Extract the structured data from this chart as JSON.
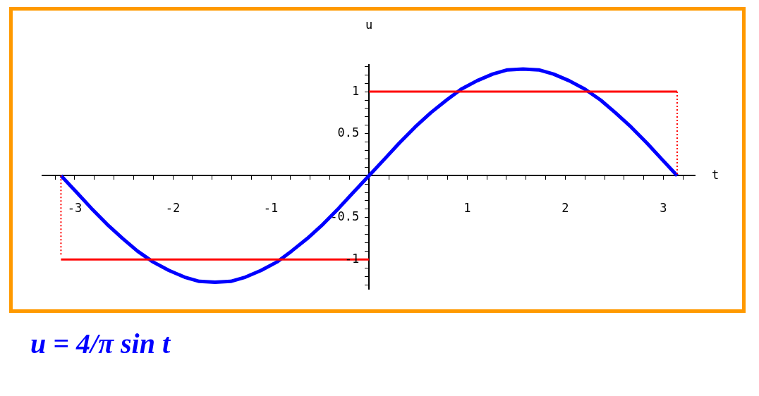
{
  "chart_data": {
    "type": "line",
    "xlabel": "t",
    "ylabel": "u",
    "xlim": [
      -3.33,
      3.32
    ],
    "ylim": [
      -1.35,
      1.32
    ],
    "xticks": [
      {
        "value": -3.2,
        "label": null
      },
      -3,
      {
        "value": -2.8,
        "label": null
      },
      {
        "value": -2.6,
        "label": null
      },
      {
        "value": -2.4,
        "label": null
      },
      {
        "value": -2.2,
        "label": null
      },
      -2,
      {
        "value": -1.8,
        "label": null
      },
      {
        "value": -1.6,
        "label": null
      },
      {
        "value": -1.4,
        "label": null
      },
      {
        "value": -1.2,
        "label": null
      },
      -1,
      {
        "value": -0.8,
        "label": null
      },
      {
        "value": -0.6,
        "label": null
      },
      {
        "value": -0.4,
        "label": null
      },
      {
        "value": -0.2,
        "label": null
      },
      {
        "value": 0,
        "label": null
      },
      {
        "value": 0.2,
        "label": null
      },
      {
        "value": 0.4,
        "label": null
      },
      {
        "value": 0.6,
        "label": null
      },
      {
        "value": 0.8,
        "label": null
      },
      1,
      {
        "value": 1.2,
        "label": null
      },
      {
        "value": 1.4,
        "label": null
      },
      {
        "value": 1.6,
        "label": null
      },
      {
        "value": 1.8,
        "label": null
      },
      2,
      {
        "value": 2.2,
        "label": null
      },
      {
        "value": 2.4,
        "label": null
      },
      {
        "value": 2.6,
        "label": null
      },
      {
        "value": 2.8,
        "label": null
      },
      3,
      {
        "value": 3.2,
        "label": null
      }
    ],
    "yticks": [
      {
        "value": -1.3,
        "label": null
      },
      {
        "value": -1.2,
        "label": null
      },
      {
        "value": -1.1,
        "label": null
      },
      -1,
      {
        "value": -0.9,
        "label": null
      },
      {
        "value": -0.8,
        "label": null
      },
      {
        "value": -0.7,
        "label": null
      },
      {
        "value": -0.6,
        "label": null
      },
      -0.5,
      {
        "value": -0.4,
        "label": null
      },
      {
        "value": -0.3,
        "label": null
      },
      {
        "value": -0.2,
        "label": null
      },
      {
        "value": -0.1,
        "label": null
      },
      {
        "value": 0,
        "label": null
      },
      {
        "value": 0.1,
        "label": null
      },
      {
        "value": 0.2,
        "label": null
      },
      {
        "value": 0.3,
        "label": null
      },
      {
        "value": 0.4,
        "label": null
      },
      0.5,
      {
        "value": 0.6,
        "label": null
      },
      {
        "value": 0.7,
        "label": null
      },
      {
        "value": 0.8,
        "label": null
      },
      {
        "value": 0.9,
        "label": null
      },
      1,
      {
        "value": 1.1,
        "label": null
      },
      {
        "value": 1.2,
        "label": null
      },
      {
        "value": 1.3,
        "label": null
      }
    ],
    "grid": false,
    "legend": false,
    "marker": "none",
    "annotations": [
      "u = 4/π sin t"
    ],
    "series": [
      {
        "type": "line",
        "color": "#ff0000",
        "line_style": "solid",
        "x": [
          -3.14,
          0
        ],
        "values": [
          -1,
          -1
        ]
      },
      {
        "type": "line",
        "color": "#ff0000",
        "line_style": "solid",
        "x": [
          0,
          3.14
        ],
        "values": [
          1,
          1
        ]
      },
      {
        "type": "line",
        "color": "#ff0000",
        "line_style": "dotted",
        "x": [
          -3.14,
          -3.14
        ],
        "values": [
          0,
          -0.95
        ]
      },
      {
        "type": "line",
        "color": "#ff0000",
        "line_style": "dotted",
        "x": [
          3.14,
          3.14
        ],
        "values": [
          1,
          0
        ]
      },
      {
        "type": "line",
        "color": "#0000ff",
        "line_style": "solid",
        "x": [
          -3.14,
          -2.98,
          -2.83,
          -2.67,
          -2.51,
          -2.36,
          -2.2,
          -2.04,
          -1.88,
          -1.73,
          -1.57,
          -1.41,
          -1.26,
          -1.1,
          -0.94,
          -0.79,
          -0.63,
          -0.47,
          -0.31,
          -0.16,
          0,
          0.16,
          0.31,
          0.47,
          0.63,
          0.79,
          0.94,
          1.1,
          1.26,
          1.41,
          1.57,
          1.73,
          1.88,
          2.04,
          2.2,
          2.36,
          2.51,
          2.67,
          2.83,
          2.98,
          3.14
        ],
        "values": [
          0,
          -0.2,
          -0.39,
          -0.58,
          -0.75,
          -0.9,
          -1.03,
          -1.13,
          -1.21,
          -1.26,
          -1.27,
          -1.26,
          -1.21,
          -1.13,
          -1.03,
          -0.9,
          -0.75,
          -0.58,
          -0.39,
          -0.2,
          0,
          0.2,
          0.39,
          0.58,
          0.75,
          0.9,
          1.03,
          1.13,
          1.21,
          1.26,
          1.27,
          1.26,
          1.21,
          1.13,
          1.03,
          0.9,
          0.75,
          0.58,
          0.39,
          0.2,
          0
        ]
      }
    ]
  }
}
